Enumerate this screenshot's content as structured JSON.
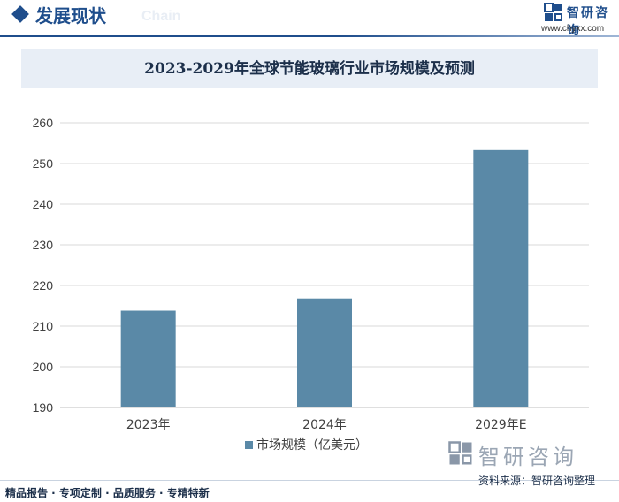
{
  "header": {
    "section_title": "发展现状",
    "section_ghost": "Chain",
    "brand_name": "智研咨询",
    "brand_url": "www.chyxx.com"
  },
  "chart_data": {
    "type": "bar",
    "title": "2023-2029年全球节能玻璃行业市场规模及预测",
    "categories": [
      "2023年",
      "2024年",
      "2029年E"
    ],
    "series": [
      {
        "name": "市场规模（亿美元）",
        "values": [
          213.8,
          216.8,
          253.3
        ]
      }
    ],
    "ylim": [
      190,
      260
    ],
    "yticks": [
      190,
      200,
      210,
      220,
      230,
      240,
      250,
      260
    ],
    "grid": true,
    "legend": "bottom",
    "colors": {
      "bar": "#5a89a7",
      "grid": "#d9d9d9",
      "axis": "#bfbfbf",
      "text": "#404040"
    }
  },
  "footer": {
    "left_text": "精品报告 · 专项定制 · 品质服务 · 专精特新",
    "brand_name": "智研咨询",
    "source": "资料来源：智研咨询整理"
  }
}
